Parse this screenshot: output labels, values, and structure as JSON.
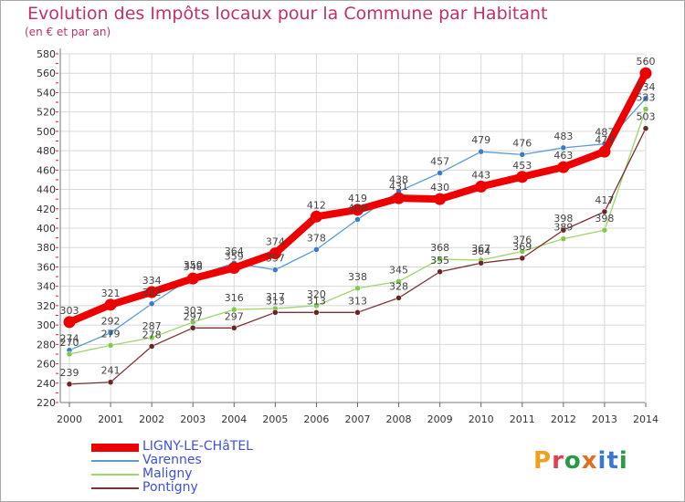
{
  "title": "Evolution des Impôts locaux pour la Commune par Habitant",
  "subtitle": "(en € et par an)",
  "logo": {
    "letters": [
      "P",
      "r",
      "o",
      "x",
      "i",
      "t",
      "i"
    ],
    "colors": [
      "#f0a020",
      "#e04050",
      "#2a9a48",
      "#e07020",
      "#3a78d8",
      "#3a78d8",
      "#2a9a48"
    ]
  },
  "chart_data": {
    "type": "line",
    "title": "Evolution des Impôts locaux pour la Commune par Habitant",
    "ylabel": "(en € et par an)",
    "xlabel": "",
    "categories": [
      "2000",
      "2001",
      "2002",
      "2003",
      "2004",
      "2005",
      "2006",
      "2007",
      "2008",
      "2009",
      "2010",
      "2011",
      "2012",
      "2013",
      "2014"
    ],
    "ylim": [
      220,
      580
    ],
    "yticks": [
      220,
      240,
      260,
      280,
      300,
      320,
      340,
      360,
      380,
      400,
      420,
      440,
      460,
      480,
      500,
      520,
      540,
      560,
      580
    ],
    "grid": true,
    "series": [
      {
        "name": "Varennes",
        "color": "#5b9bd5",
        "dot": "#3a7cc8",
        "values": [
          274,
          292,
          322,
          350,
          364,
          357,
          378,
          409,
          438,
          457,
          479,
          476,
          483,
          487,
          534
        ]
      },
      {
        "name": "Maligny",
        "color": "#9cd76a",
        "dot": "#82c84e",
        "values": [
          270,
          279,
          287,
          303,
          316,
          317,
          320,
          338,
          345,
          368,
          367,
          376,
          389,
          398,
          523
        ]
      },
      {
        "name": "Pontigny",
        "color": "#7a3232",
        "dot": "#6a2424",
        "values": [
          239,
          241,
          278,
          297,
          297,
          313,
          313,
          313,
          328,
          355,
          364,
          369,
          398,
          417,
          503
        ]
      },
      {
        "name": "LIGNY-LE-CHâTEL",
        "color": "#ee0000",
        "dot": "#ee0000",
        "values": [
          303,
          321,
          334,
          348,
          359,
          374,
          412,
          419,
          431,
          430,
          443,
          453,
          463,
          479,
          560
        ]
      }
    ],
    "legend": [
      "LIGNY-LE-CHâTEL",
      "Varennes",
      "Maligny",
      "Pontigny"
    ]
  }
}
